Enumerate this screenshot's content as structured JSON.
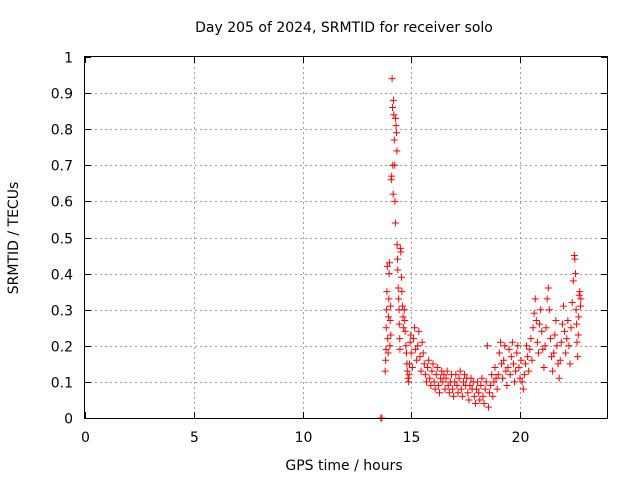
{
  "chart_data": {
    "type": "scatter",
    "title": "Day 205 of 2024, SRMTID for receiver solo",
    "xlabel": "GPS time / hours",
    "ylabel": "SRMTID / TECUs",
    "xlim": [
      0,
      24
    ],
    "ylim": [
      0,
      1
    ],
    "x_ticks": [
      0,
      5,
      10,
      15,
      20
    ],
    "x_tick_labels": [
      "0",
      "5",
      "10",
      "15",
      "20"
    ],
    "y_ticks": [
      0,
      0.1,
      0.2,
      0.3,
      0.4,
      0.5,
      0.6,
      0.7,
      0.8,
      0.9,
      1
    ],
    "y_tick_labels": [
      "0",
      "0.1",
      "0.2",
      "0.3",
      "0.4",
      "0.5",
      "0.6",
      "0.7",
      "0.8",
      "0.9",
      "1"
    ],
    "grid": true,
    "marker": "+",
    "color": "#ff0000",
    "series": [
      {
        "name": "SRMTID",
        "points": [
          [
            13.6,
            0.0
          ],
          [
            13.65,
            0.0
          ],
          [
            13.8,
            0.13
          ],
          [
            13.82,
            0.16
          ],
          [
            13.84,
            0.19
          ],
          [
            13.85,
            0.25
          ],
          [
            13.87,
            0.3
          ],
          [
            13.88,
            0.35
          ],
          [
            13.9,
            0.42
          ],
          [
            13.92,
            0.22
          ],
          [
            13.94,
            0.18
          ],
          [
            13.95,
            0.28
          ],
          [
            13.97,
            0.33
          ],
          [
            13.98,
            0.4
          ],
          [
            14.0,
            0.43
          ],
          [
            14.02,
            0.2
          ],
          [
            14.03,
            0.27
          ],
          [
            14.05,
            0.31
          ],
          [
            14.06,
            0.23
          ],
          [
            14.08,
            0.66
          ],
          [
            14.1,
            0.67
          ],
          [
            14.12,
            0.94
          ],
          [
            14.14,
            0.86
          ],
          [
            14.15,
            0.7
          ],
          [
            14.17,
            0.62
          ],
          [
            14.18,
            0.88
          ],
          [
            14.2,
            0.84
          ],
          [
            14.22,
            0.77
          ],
          [
            14.24,
            0.7
          ],
          [
            14.25,
            0.6
          ],
          [
            14.27,
            0.54
          ],
          [
            14.28,
            0.83
          ],
          [
            14.3,
            0.81
          ],
          [
            14.32,
            0.79
          ],
          [
            14.34,
            0.74
          ],
          [
            14.35,
            0.48
          ],
          [
            14.37,
            0.44
          ],
          [
            14.38,
            0.41
          ],
          [
            14.4,
            0.36
          ],
          [
            14.42,
            0.33
          ],
          [
            14.44,
            0.3
          ],
          [
            14.45,
            0.26
          ],
          [
            14.47,
            0.22
          ],
          [
            14.48,
            0.19
          ],
          [
            14.5,
            0.47
          ],
          [
            14.52,
            0.46
          ],
          [
            14.55,
            0.39
          ],
          [
            14.57,
            0.35
          ],
          [
            14.6,
            0.31
          ],
          [
            14.62,
            0.28
          ],
          [
            14.65,
            0.25
          ],
          [
            14.68,
            0.3
          ],
          [
            14.7,
            0.27
          ],
          [
            14.72,
            0.24
          ],
          [
            14.75,
            0.2
          ],
          [
            14.78,
            0.18
          ],
          [
            14.8,
            0.15
          ],
          [
            14.82,
            0.13
          ],
          [
            14.85,
            0.11
          ],
          [
            14.88,
            0.1
          ],
          [
            14.9,
            0.12
          ],
          [
            14.92,
            0.15
          ],
          [
            14.95,
            0.21
          ],
          [
            14.98,
            0.23
          ],
          [
            15.0,
            0.18
          ],
          [
            15.05,
            0.14
          ],
          [
            15.1,
            0.22
          ],
          [
            15.15,
            0.25
          ],
          [
            15.2,
            0.19
          ],
          [
            15.25,
            0.16
          ],
          [
            15.3,
            0.2
          ],
          [
            15.35,
            0.24
          ],
          [
            15.4,
            0.17
          ],
          [
            15.45,
            0.13
          ],
          [
            15.5,
            0.21
          ],
          [
            15.55,
            0.18
          ],
          [
            15.6,
            0.15
          ],
          [
            15.65,
            0.12
          ],
          [
            15.7,
            0.1
          ],
          [
            15.75,
            0.14
          ],
          [
            15.8,
            0.16
          ],
          [
            15.85,
            0.11
          ],
          [
            15.9,
            0.09
          ],
          [
            15.95,
            0.13
          ],
          [
            16.0,
            0.15
          ],
          [
            16.05,
            0.1
          ],
          [
            16.1,
            0.08
          ],
          [
            16.15,
            0.12
          ],
          [
            16.2,
            0.14
          ],
          [
            16.25,
            0.09
          ],
          [
            16.3,
            0.07
          ],
          [
            16.35,
            0.11
          ],
          [
            16.4,
            0.13
          ],
          [
            16.45,
            0.1
          ],
          [
            16.5,
            0.12
          ],
          [
            16.55,
            0.08
          ],
          [
            16.6,
            0.11
          ],
          [
            16.65,
            0.13
          ],
          [
            16.7,
            0.09
          ],
          [
            16.75,
            0.07
          ],
          [
            16.8,
            0.1
          ],
          [
            16.85,
            0.12
          ],
          [
            16.9,
            0.08
          ],
          [
            16.95,
            0.06
          ],
          [
            17.0,
            0.1
          ],
          [
            17.05,
            0.12
          ],
          [
            17.1,
            0.09
          ],
          [
            17.15,
            0.07
          ],
          [
            17.2,
            0.11
          ],
          [
            17.25,
            0.13
          ],
          [
            17.3,
            0.08
          ],
          [
            17.35,
            0.06
          ],
          [
            17.4,
            0.1
          ],
          [
            17.45,
            0.12
          ],
          [
            17.5,
            0.09
          ],
          [
            17.55,
            0.11
          ],
          [
            17.6,
            0.07
          ],
          [
            17.65,
            0.05
          ],
          [
            17.7,
            0.09
          ],
          [
            17.75,
            0.11
          ],
          [
            17.8,
            0.08
          ],
          [
            17.85,
            0.1
          ],
          [
            17.9,
            0.06
          ],
          [
            17.95,
            0.04
          ],
          [
            18.0,
            0.08
          ],
          [
            18.05,
            0.1
          ],
          [
            18.1,
            0.07
          ],
          [
            18.15,
            0.05
          ],
          [
            18.2,
            0.09
          ],
          [
            18.25,
            0.11
          ],
          [
            18.3,
            0.06
          ],
          [
            18.35,
            0.04
          ],
          [
            18.4,
            0.08
          ],
          [
            18.45,
            0.1
          ],
          [
            18.5,
            0.2
          ],
          [
            18.55,
            0.03
          ],
          [
            18.6,
            0.07
          ],
          [
            18.65,
            0.09
          ],
          [
            18.7,
            0.12
          ],
          [
            18.75,
            0.06
          ],
          [
            18.8,
            0.1
          ],
          [
            18.85,
            0.14
          ],
          [
            18.9,
            0.11
          ],
          [
            18.95,
            0.08
          ],
          [
            19.0,
            0.12
          ],
          [
            19.05,
            0.18
          ],
          [
            19.1,
            0.21
          ],
          [
            19.15,
            0.15
          ],
          [
            19.2,
            0.11
          ],
          [
            19.25,
            0.16
          ],
          [
            19.3,
            0.2
          ],
          [
            19.35,
            0.13
          ],
          [
            19.4,
            0.09
          ],
          [
            19.45,
            0.14
          ],
          [
            19.5,
            0.19
          ],
          [
            19.55,
            0.12
          ],
          [
            19.6,
            0.17
          ],
          [
            19.65,
            0.21
          ],
          [
            19.7,
            0.15
          ],
          [
            19.75,
            0.1
          ],
          [
            19.8,
            0.13
          ],
          [
            19.85,
            0.18
          ],
          [
            19.9,
            0.2
          ],
          [
            19.95,
            0.14
          ],
          [
            20.0,
            0.11
          ],
          [
            20.05,
            0.16
          ],
          [
            20.1,
            0.1
          ],
          [
            20.15,
            0.08
          ],
          [
            20.2,
            0.12
          ],
          [
            20.25,
            0.15
          ],
          [
            20.3,
            0.2
          ],
          [
            20.35,
            0.17
          ],
          [
            20.4,
            0.13
          ],
          [
            20.45,
            0.19
          ],
          [
            20.5,
            0.22
          ],
          [
            20.55,
            0.16
          ],
          [
            20.6,
            0.25
          ],
          [
            20.65,
            0.29
          ],
          [
            20.7,
            0.33
          ],
          [
            20.75,
            0.27
          ],
          [
            20.8,
            0.21
          ],
          [
            20.85,
            0.18
          ],
          [
            20.9,
            0.26
          ],
          [
            20.95,
            0.3
          ],
          [
            21.0,
            0.24
          ],
          [
            21.05,
            0.19
          ],
          [
            21.1,
            0.14
          ],
          [
            21.15,
            0.2
          ],
          [
            21.2,
            0.25
          ],
          [
            21.25,
            0.33
          ],
          [
            21.3,
            0.36
          ],
          [
            21.35,
            0.3
          ],
          [
            21.4,
            0.22
          ],
          [
            21.45,
            0.17
          ],
          [
            21.5,
            0.13
          ],
          [
            21.55,
            0.18
          ],
          [
            21.6,
            0.23
          ],
          [
            21.65,
            0.27
          ],
          [
            21.7,
            0.2
          ],
          [
            21.75,
            0.15
          ],
          [
            21.8,
            0.11
          ],
          [
            21.85,
            0.16
          ],
          [
            21.9,
            0.21
          ],
          [
            21.95,
            0.26
          ],
          [
            22.0,
            0.31
          ],
          [
            22.05,
            0.24
          ],
          [
            22.1,
            0.18
          ],
          [
            22.15,
            0.22
          ],
          [
            22.2,
            0.27
          ],
          [
            22.25,
            0.2
          ],
          [
            22.3,
            0.15
          ],
          [
            22.35,
            0.25
          ],
          [
            22.4,
            0.32
          ],
          [
            22.45,
            0.38
          ],
          [
            22.5,
            0.45
          ],
          [
            22.52,
            0.44
          ],
          [
            22.55,
            0.4
          ],
          [
            22.58,
            0.3
          ],
          [
            22.6,
            0.26
          ],
          [
            22.62,
            0.21
          ],
          [
            22.65,
            0.17
          ],
          [
            22.68,
            0.23
          ],
          [
            22.7,
            0.28
          ],
          [
            22.72,
            0.34
          ],
          [
            22.75,
            0.35
          ],
          [
            22.78,
            0.31
          ],
          [
            22.8,
            0.33
          ]
        ]
      }
    ]
  }
}
